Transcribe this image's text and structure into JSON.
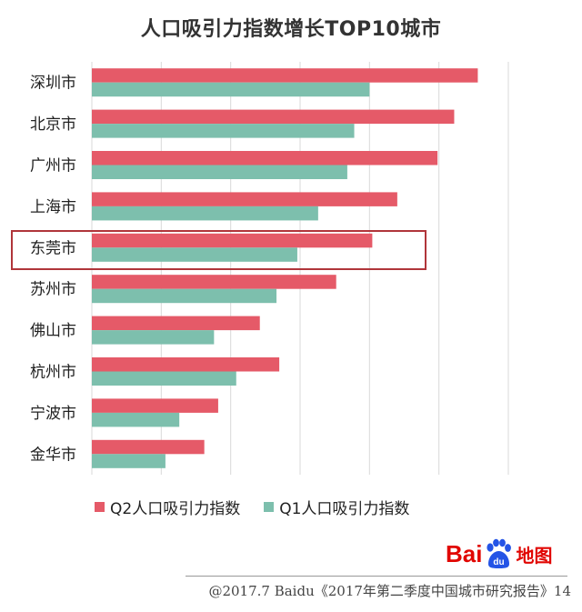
{
  "chart_data": {
    "type": "bar",
    "orientation": "horizontal",
    "title": "人口吸引力指数增长TOP10城市",
    "categories": [
      "深圳市",
      "北京市",
      "广州市",
      "上海市",
      "东莞市",
      "苏州市",
      "佛山市",
      "杭州市",
      "宁波市",
      "金华市"
    ],
    "series": [
      {
        "name": "Q2人口吸引力指数",
        "color": "#e55a68",
        "values": [
          27.8,
          26.1,
          24.9,
          22.0,
          20.2,
          17.6,
          12.1,
          13.5,
          9.1,
          8.1
        ]
      },
      {
        "name": "Q1人口吸引力指数",
        "color": "#7dbfad",
        "values": [
          20.0,
          18.9,
          18.4,
          16.3,
          14.8,
          13.3,
          8.8,
          10.4,
          6.3,
          5.3
        ]
      }
    ],
    "xlim": [
      0,
      30
    ],
    "x_gridlines": [
      0,
      5,
      10,
      15,
      20,
      25,
      30
    ],
    "grid": true,
    "legend": "bottom-left",
    "highlight": "东莞市"
  },
  "logo": {
    "text_a": "Bai",
    "text_b": "du",
    "text_c": "地图"
  },
  "footer": "@2017.7 Baidu《2017年第二季度中国城市研究报告》14"
}
